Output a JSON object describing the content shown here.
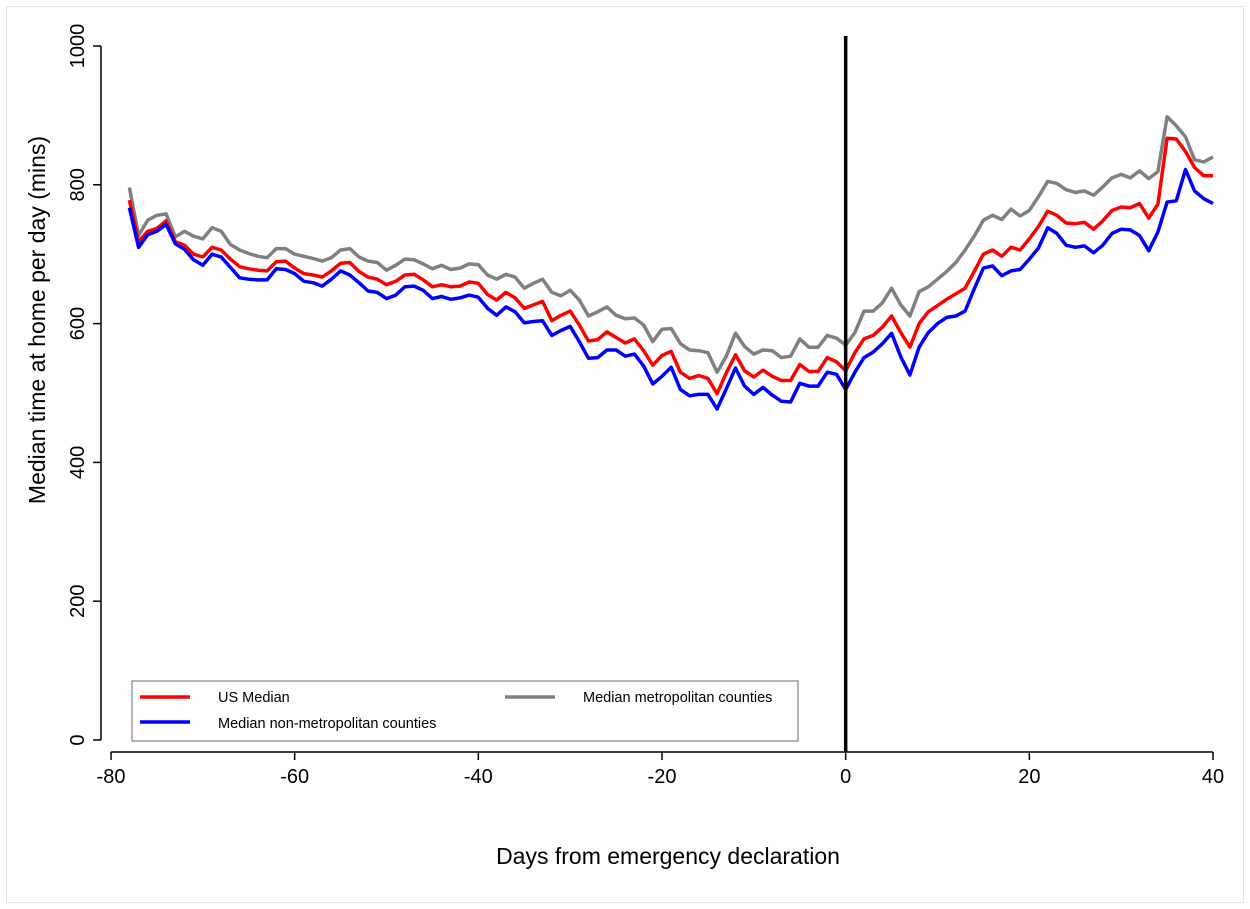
{
  "chart_data": {
    "type": "line",
    "title": "",
    "xlabel": "Days from emergency declaration",
    "ylabel": "Median time at home per day (mins)",
    "xlim": [
      -80,
      40
    ],
    "ylim": [
      0,
      1000
    ],
    "xticks": [
      -80,
      -60,
      -40,
      -20,
      0,
      20,
      40
    ],
    "yticks": [
      0,
      200,
      400,
      600,
      800,
      1000
    ],
    "xtick_labels": [
      "-80",
      "-60",
      "-40",
      "-20",
      "0",
      "20",
      "40"
    ],
    "ytick_labels": [
      "0",
      "200",
      "400",
      "600",
      "800",
      "1000"
    ],
    "grid": false,
    "legend_position": "bottom-left",
    "reference_line": {
      "x": 0,
      "color": "#000000"
    },
    "x": [
      -78,
      -77,
      -76,
      -75,
      -74,
      -73,
      -72,
      -71,
      -70,
      -69,
      -68,
      -67,
      -66,
      -65,
      -64,
      -63,
      -62,
      -61,
      -60,
      -59,
      -58,
      -57,
      -56,
      -55,
      -54,
      -53,
      -52,
      -51,
      -50,
      -49,
      -48,
      -47,
      -46,
      -45,
      -44,
      -43,
      -42,
      -41,
      -40,
      -39,
      -38,
      -37,
      -36,
      -35,
      -34,
      -33,
      -32,
      -31,
      -30,
      -29,
      -28,
      -27,
      -26,
      -25,
      -24,
      -23,
      -22,
      -21,
      -20,
      -19,
      -18,
      -17,
      -16,
      -15,
      -14,
      -13,
      -12,
      -11,
      -10,
      -9,
      -8,
      -7,
      -6,
      -5,
      -4,
      -3,
      -2,
      -1,
      0,
      1,
      2,
      3,
      4,
      5,
      6,
      7,
      8,
      9,
      10,
      11,
      12,
      13,
      14,
      15,
      16,
      17,
      18,
      19,
      20,
      21,
      22,
      23,
      24,
      25,
      26,
      27,
      28,
      29,
      30,
      31,
      32,
      33,
      34,
      35,
      36,
      37,
      38,
      39,
      40
    ],
    "series": [
      {
        "name": "US Median",
        "color": "#ff0000",
        "values": [
          778,
          718,
          733,
          737,
          748,
          718,
          713,
          700,
          696,
          710,
          706,
          693,
          682,
          679,
          677,
          676,
          689,
          690,
          680,
          672,
          670,
          667,
          676,
          687,
          688,
          675,
          667,
          664,
          656,
          661,
          670,
          671,
          663,
          653,
          656,
          653,
          654,
          660,
          658,
          642,
          634,
          645,
          637,
          622,
          627,
          632,
          604,
          612,
          618,
          598,
          575,
          577,
          588,
          580,
          572,
          578,
          561,
          540,
          554,
          560,
          530,
          521,
          525,
          521,
          499,
          529,
          555,
          532,
          523,
          533,
          524,
          518,
          518,
          541,
          531,
          531,
          551,
          545,
          532,
          558,
          578,
          583,
          595,
          611,
          587,
          566,
          600,
          617,
          626,
          635,
          643,
          651,
          675,
          700,
          706,
          697,
          710,
          706,
          722,
          740,
          762,
          756,
          745,
          744,
          746,
          736,
          748,
          763,
          768,
          767,
          773,
          752,
          772,
          867,
          866,
          848,
          825,
          813,
          813
        ]
      },
      {
        "name": "Median non-metropolitan counties",
        "color": "#0000ff",
        "values": [
          767,
          710,
          728,
          733,
          743,
          715,
          707,
          692,
          684,
          700,
          696,
          681,
          666,
          664,
          663,
          663,
          679,
          678,
          672,
          661,
          659,
          654,
          664,
          676,
          670,
          659,
          647,
          645,
          636,
          641,
          653,
          654,
          648,
          636,
          639,
          635,
          637,
          641,
          638,
          622,
          612,
          624,
          617,
          601,
          603,
          604,
          583,
          590,
          596,
          574,
          550,
          551,
          562,
          562,
          553,
          556,
          539,
          513,
          524,
          537,
          505,
          496,
          498,
          498,
          477,
          506,
          536,
          510,
          498,
          508,
          497,
          488,
          487,
          514,
          510,
          510,
          530,
          527,
          505,
          530,
          551,
          559,
          571,
          586,
          552,
          526,
          566,
          587,
          600,
          609,
          611,
          618,
          650,
          680,
          683,
          669,
          676,
          678,
          693,
          709,
          738,
          730,
          713,
          710,
          712,
          702,
          713,
          730,
          736,
          735,
          727,
          705,
          732,
          775,
          777,
          822,
          791,
          780,
          773
        ]
      },
      {
        "name": "Median metropolitan counties",
        "color": "#808080",
        "values": [
          796,
          727,
          749,
          756,
          758,
          725,
          733,
          726,
          722,
          738,
          733,
          714,
          706,
          701,
          697,
          695,
          708,
          708,
          700,
          697,
          694,
          690,
          695,
          706,
          708,
          696,
          690,
          688,
          677,
          684,
          693,
          692,
          686,
          679,
          684,
          678,
          680,
          686,
          685,
          670,
          664,
          671,
          667,
          651,
          658,
          664,
          645,
          640,
          648,
          634,
          611,
          617,
          624,
          612,
          607,
          608,
          598,
          574,
          592,
          593,
          571,
          562,
          561,
          558,
          530,
          553,
          586,
          567,
          556,
          562,
          561,
          551,
          553,
          578,
          566,
          566,
          583,
          579,
          569,
          587,
          618,
          618,
          630,
          651,
          627,
          611,
          646,
          653,
          664,
          675,
          688,
          706,
          726,
          749,
          756,
          750,
          765,
          755,
          763,
          783,
          805,
          802,
          793,
          789,
          791,
          785,
          797,
          810,
          815,
          810,
          820,
          809,
          819,
          898,
          885,
          869,
          836,
          833,
          840
        ]
      }
    ]
  },
  "legend": {
    "entries": [
      {
        "label": "US Median",
        "color": "#ff0000"
      },
      {
        "label": "Median metropolitan counties",
        "color": "#808080"
      },
      {
        "label": "Median non-metropolitan counties",
        "color": "#0000ff"
      }
    ]
  }
}
